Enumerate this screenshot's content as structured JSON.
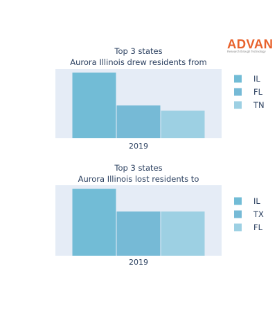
{
  "logo": {
    "name": "ADVAN",
    "tagline": "Research through Technology",
    "color": "#e8622c"
  },
  "colors": {
    "plot_bg": "#e5ecf6",
    "text": "#2a3f5f"
  },
  "chart_data": [
    {
      "type": "bar",
      "title": "Top 3 states\nAurora Illinois drew residents from",
      "categories": [
        "2019"
      ],
      "series": [
        {
          "name": "IL",
          "values": [
            1.0
          ],
          "color": "#72bcd6"
        },
        {
          "name": "FL",
          "values": [
            0.5
          ],
          "color": "#76bad6"
        },
        {
          "name": "TN",
          "values": [
            0.42
          ],
          "color": "#9dd0e3"
        }
      ],
      "legend": "right"
    },
    {
      "type": "bar",
      "title": "Top 3 states\nAurora Illinois lost residents to",
      "categories": [
        "2019"
      ],
      "series": [
        {
          "name": "IL",
          "values": [
            1.0
          ],
          "color": "#72bcd6"
        },
        {
          "name": "TX",
          "values": [
            0.66
          ],
          "color": "#76bad6"
        },
        {
          "name": "FL",
          "values": [
            0.66
          ],
          "color": "#9dd0e3"
        }
      ],
      "legend": "right"
    }
  ]
}
